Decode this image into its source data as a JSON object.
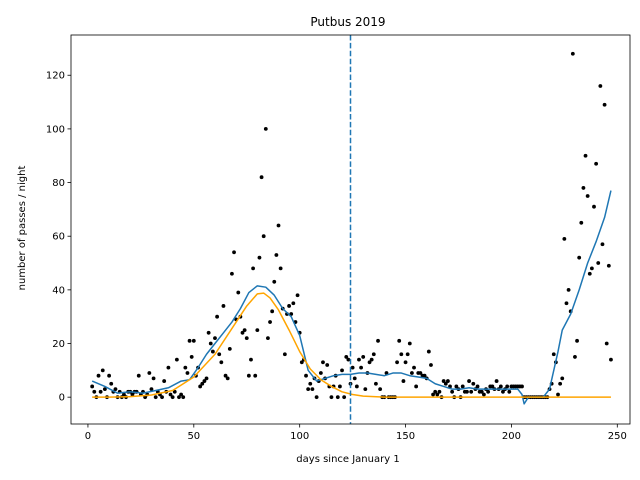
{
  "chart_data": {
    "type": "scatter",
    "title": "Putbus 2019",
    "xlabel": "days since January 1",
    "ylabel": "number of passes / night",
    "xlim": [
      -8,
      256
    ],
    "ylim": [
      -10,
      135
    ],
    "xticks": [
      0,
      50,
      100,
      150,
      200,
      250
    ],
    "yticks": [
      0,
      20,
      40,
      60,
      80,
      100,
      120
    ],
    "grid": false,
    "vline": {
      "x": 124,
      "color": "#1f77b4",
      "style": "dashed"
    },
    "points": [
      [
        2,
        4
      ],
      [
        3,
        2
      ],
      [
        4,
        0
      ],
      [
        5,
        8
      ],
      [
        6,
        2
      ],
      [
        7,
        10
      ],
      [
        8,
        3
      ],
      [
        9,
        0
      ],
      [
        10,
        8
      ],
      [
        11,
        5
      ],
      [
        12,
        2
      ],
      [
        13,
        3
      ],
      [
        14,
        0
      ],
      [
        15,
        2
      ],
      [
        16,
        0
      ],
      [
        17,
        1
      ],
      [
        18,
        0
      ],
      [
        19,
        2
      ],
      [
        20,
        2
      ],
      [
        21,
        1
      ],
      [
        22,
        2
      ],
      [
        23,
        2
      ],
      [
        24,
        8
      ],
      [
        25,
        1
      ],
      [
        26,
        2
      ],
      [
        27,
        0
      ],
      [
        28,
        1
      ],
      [
        29,
        9
      ],
      [
        30,
        3
      ],
      [
        31,
        7
      ],
      [
        32,
        0
      ],
      [
        33,
        2
      ],
      [
        34,
        1
      ],
      [
        35,
        0
      ],
      [
        36,
        6
      ],
      [
        37,
        2
      ],
      [
        38,
        11
      ],
      [
        39,
        1
      ],
      [
        40,
        0
      ],
      [
        41,
        2
      ],
      [
        42,
        14
      ],
      [
        43,
        0
      ],
      [
        44,
        1
      ],
      [
        45,
        0
      ],
      [
        46,
        11
      ],
      [
        47,
        9
      ],
      [
        48,
        21
      ],
      [
        49,
        15
      ],
      [
        50,
        21
      ],
      [
        51,
        8
      ],
      [
        52,
        11
      ],
      [
        53,
        4
      ],
      [
        54,
        5
      ],
      [
        55,
        6
      ],
      [
        56,
        7
      ],
      [
        57,
        24
      ],
      [
        58,
        20
      ],
      [
        59,
        17
      ],
      [
        60,
        22
      ],
      [
        61,
        30
      ],
      [
        62,
        16
      ],
      [
        63,
        13
      ],
      [
        64,
        34
      ],
      [
        65,
        8
      ],
      [
        66,
        7
      ],
      [
        67,
        18
      ],
      [
        68,
        46
      ],
      [
        69,
        54
      ],
      [
        70,
        29
      ],
      [
        71,
        39
      ],
      [
        72,
        30
      ],
      [
        73,
        24
      ],
      [
        74,
        25
      ],
      [
        75,
        22
      ],
      [
        76,
        8
      ],
      [
        77,
        14
      ],
      [
        78,
        48
      ],
      [
        79,
        8
      ],
      [
        80,
        25
      ],
      [
        81,
        52
      ],
      [
        82,
        82
      ],
      [
        83,
        60
      ],
      [
        84,
        100
      ],
      [
        85,
        22
      ],
      [
        86,
        28
      ],
      [
        87,
        32
      ],
      [
        88,
        43
      ],
      [
        89,
        53
      ],
      [
        90,
        64
      ],
      [
        91,
        48
      ],
      [
        92,
        33
      ],
      [
        93,
        16
      ],
      [
        94,
        31
      ],
      [
        95,
        34
      ],
      [
        96,
        31
      ],
      [
        97,
        35
      ],
      [
        98,
        28
      ],
      [
        99,
        38
      ],
      [
        100,
        24
      ],
      [
        101,
        13
      ],
      [
        102,
        14
      ],
      [
        103,
        8
      ],
      [
        104,
        3
      ],
      [
        105,
        5
      ],
      [
        106,
        3
      ],
      [
        107,
        7
      ],
      [
        108,
        0
      ],
      [
        109,
        6
      ],
      [
        110,
        9
      ],
      [
        111,
        13
      ],
      [
        112,
        7
      ],
      [
        113,
        12
      ],
      [
        114,
        4
      ],
      [
        115,
        0
      ],
      [
        116,
        4
      ],
      [
        117,
        8
      ],
      [
        118,
        0
      ],
      [
        119,
        4
      ],
      [
        120,
        10
      ],
      [
        121,
        0
      ],
      [
        122,
        15
      ],
      [
        123,
        14
      ],
      [
        124,
        5
      ],
      [
        125,
        11
      ],
      [
        126,
        7
      ],
      [
        127,
        4
      ],
      [
        128,
        14
      ],
      [
        129,
        11
      ],
      [
        130,
        15
      ],
      [
        131,
        3
      ],
      [
        132,
        9
      ],
      [
        133,
        13
      ],
      [
        134,
        14
      ],
      [
        135,
        16
      ],
      [
        136,
        5
      ],
      [
        137,
        21
      ],
      [
        138,
        3
      ],
      [
        139,
        0
      ],
      [
        140,
        0
      ],
      [
        141,
        9
      ],
      [
        142,
        0
      ],
      [
        143,
        0
      ],
      [
        144,
        0
      ],
      [
        145,
        0
      ],
      [
        146,
        13
      ],
      [
        147,
        21
      ],
      [
        148,
        16
      ],
      [
        149,
        6
      ],
      [
        150,
        13
      ],
      [
        151,
        16
      ],
      [
        152,
        20
      ],
      [
        153,
        9
      ],
      [
        154,
        11
      ],
      [
        155,
        4
      ],
      [
        156,
        9
      ],
      [
        157,
        9
      ],
      [
        158,
        8
      ],
      [
        159,
        8
      ],
      [
        160,
        7
      ],
      [
        161,
        17
      ],
      [
        162,
        12
      ],
      [
        163,
        1
      ],
      [
        164,
        2
      ],
      [
        165,
        1
      ],
      [
        166,
        2
      ],
      [
        167,
        0
      ],
      [
        168,
        6
      ],
      [
        169,
        5
      ],
      [
        170,
        6
      ],
      [
        171,
        4
      ],
      [
        172,
        2
      ],
      [
        173,
        0
      ],
      [
        174,
        4
      ],
      [
        175,
        3
      ],
      [
        176,
        0
      ],
      [
        177,
        4
      ],
      [
        178,
        2
      ],
      [
        179,
        2
      ],
      [
        180,
        6
      ],
      [
        181,
        2
      ],
      [
        182,
        5
      ],
      [
        183,
        3
      ],
      [
        184,
        4
      ],
      [
        185,
        2
      ],
      [
        186,
        2
      ],
      [
        187,
        1
      ],
      [
        188,
        3
      ],
      [
        189,
        2
      ],
      [
        190,
        4
      ],
      [
        191,
        4
      ],
      [
        192,
        3
      ],
      [
        193,
        6
      ],
      [
        194,
        3
      ],
      [
        195,
        4
      ],
      [
        196,
        2
      ],
      [
        197,
        3
      ],
      [
        198,
        4
      ],
      [
        199,
        2
      ],
      [
        200,
        4
      ],
      [
        201,
        4
      ],
      [
        202,
        4
      ],
      [
        203,
        4
      ],
      [
        204,
        4
      ],
      [
        205,
        4
      ],
      [
        206,
        0
      ],
      [
        207,
        0
      ],
      [
        208,
        0
      ],
      [
        209,
        0
      ],
      [
        210,
        0
      ],
      [
        211,
        0
      ],
      [
        212,
        0
      ],
      [
        213,
        0
      ],
      [
        214,
        0
      ],
      [
        215,
        0
      ],
      [
        216,
        0
      ],
      [
        217,
        0
      ],
      [
        218,
        3
      ],
      [
        219,
        5
      ],
      [
        220,
        16
      ],
      [
        221,
        13
      ],
      [
        222,
        1
      ],
      [
        223,
        5
      ],
      [
        224,
        7
      ],
      [
        225,
        59
      ],
      [
        226,
        35
      ],
      [
        227,
        40
      ],
      [
        228,
        32
      ],
      [
        229,
        128
      ],
      [
        230,
        15
      ],
      [
        231,
        21
      ],
      [
        232,
        52
      ],
      [
        233,
        65
      ],
      [
        234,
        78
      ],
      [
        235,
        90
      ],
      [
        236,
        75
      ],
      [
        237,
        46
      ],
      [
        238,
        48
      ],
      [
        239,
        71
      ],
      [
        240,
        87
      ],
      [
        241,
        50
      ],
      [
        242,
        116
      ],
      [
        243,
        57
      ],
      [
        244,
        109
      ],
      [
        245,
        20
      ],
      [
        246,
        49
      ],
      [
        247,
        14
      ]
    ],
    "series": [
      {
        "color": "#1f77b4",
        "points": [
          [
            2,
            6
          ],
          [
            8,
            4
          ],
          [
            14,
            1.5
          ],
          [
            20,
            2
          ],
          [
            26,
            1.5
          ],
          [
            32,
            2.5
          ],
          [
            38,
            3.5
          ],
          [
            44,
            6
          ],
          [
            48,
            6.5
          ],
          [
            52,
            11
          ],
          [
            56,
            16
          ],
          [
            60,
            20
          ],
          [
            64,
            24
          ],
          [
            68,
            28
          ],
          [
            72,
            33
          ],
          [
            76,
            39
          ],
          [
            80,
            41.5
          ],
          [
            84,
            41
          ],
          [
            88,
            38
          ],
          [
            92,
            33
          ],
          [
            96,
            30
          ],
          [
            100,
            23
          ],
          [
            104,
            10
          ],
          [
            108,
            6
          ],
          [
            112,
            7
          ],
          [
            116,
            8
          ],
          [
            120,
            8.5
          ],
          [
            124,
            8.5
          ],
          [
            128,
            9
          ],
          [
            132,
            9
          ],
          [
            136,
            8.5
          ],
          [
            140,
            8
          ],
          [
            144,
            9
          ],
          [
            148,
            9
          ],
          [
            152,
            8
          ],
          [
            156,
            7.5
          ],
          [
            160,
            7
          ],
          [
            164,
            5
          ],
          [
            168,
            4
          ],
          [
            172,
            3
          ],
          [
            176,
            3
          ],
          [
            180,
            3.5
          ],
          [
            184,
            3
          ],
          [
            188,
            3
          ],
          [
            192,
            3
          ],
          [
            196,
            3
          ],
          [
            200,
            3
          ],
          [
            203,
            3
          ],
          [
            205,
            1
          ],
          [
            206,
            -2.5
          ],
          [
            208,
            0
          ],
          [
            212,
            0
          ],
          [
            215,
            0
          ],
          [
            218,
            3
          ],
          [
            222,
            17
          ],
          [
            224,
            25
          ],
          [
            228,
            31
          ],
          [
            232,
            40
          ],
          [
            236,
            50
          ],
          [
            240,
            58
          ],
          [
            244,
            67
          ],
          [
            247,
            77
          ]
        ]
      },
      {
        "color": "#ffa500",
        "points": [
          [
            2,
            0
          ],
          [
            10,
            0
          ],
          [
            20,
            0.2
          ],
          [
            30,
            0.8
          ],
          [
            40,
            2.5
          ],
          [
            50,
            7.5
          ],
          [
            60,
            16
          ],
          [
            70,
            28
          ],
          [
            75,
            34
          ],
          [
            80,
            38.5
          ],
          [
            83,
            38.8
          ],
          [
            86,
            37
          ],
          [
            90,
            32.5
          ],
          [
            95,
            25
          ],
          [
            100,
            17
          ],
          [
            105,
            10.5
          ],
          [
            110,
            6.5
          ],
          [
            115,
            4
          ],
          [
            120,
            2
          ],
          [
            125,
            1
          ],
          [
            130,
            0.4
          ],
          [
            140,
            0
          ],
          [
            160,
            0
          ],
          [
            180,
            0
          ],
          [
            200,
            0
          ],
          [
            220,
            0
          ],
          [
            247,
            0
          ]
        ]
      }
    ]
  }
}
